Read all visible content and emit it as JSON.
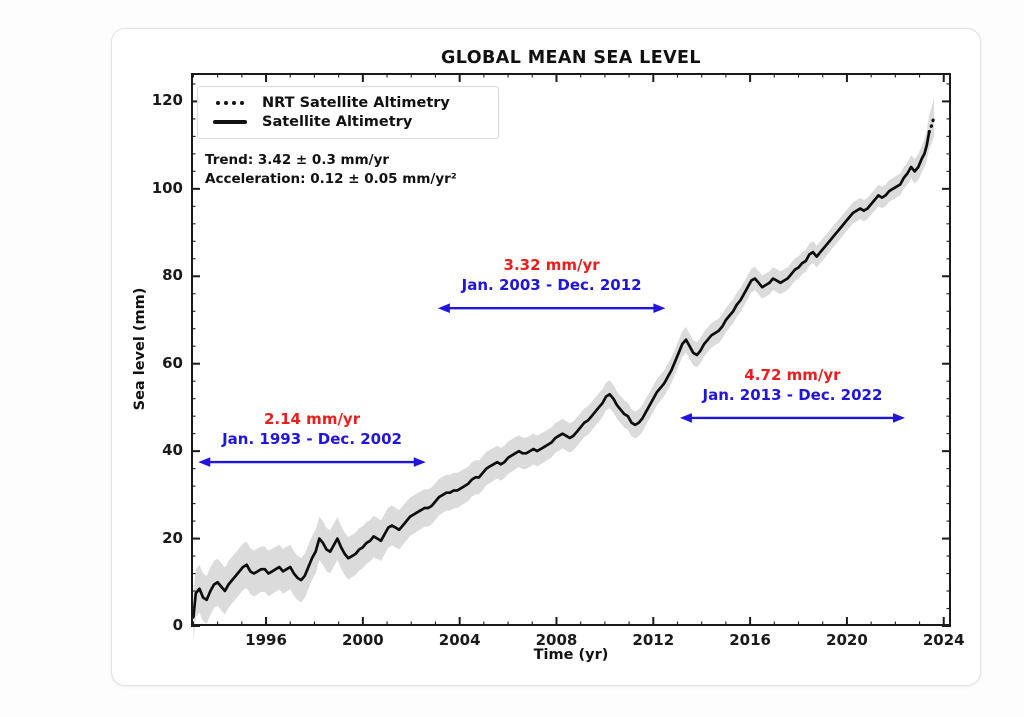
{
  "chart_data": {
    "type": "line",
    "title": "GLOBAL MEAN SEA LEVEL",
    "xlabel": "Time (yr)",
    "ylabel": "Sea level (mm)",
    "x_range": [
      1992.9,
      2024.3
    ],
    "y_range": [
      0,
      126.5
    ],
    "x_major_ticks": [
      1996,
      2000,
      2004,
      2008,
      2012,
      2016,
      2020,
      2024
    ],
    "x_minor_step": 1,
    "y_major_ticks": [
      0,
      20,
      40,
      60,
      80,
      100,
      120
    ],
    "y_minor_step": 4,
    "grid": "off",
    "legend_position": "upper-left",
    "legend": [
      {
        "label": "NRT Satellite Altimetry",
        "style": "dotted"
      },
      {
        "label": "Satellite Altimetry",
        "style": "solid"
      }
    ],
    "stats": {
      "trend": "Trend: 3.42 ± 0.3 mm/yr",
      "acceleration": "Acceleration: 0.12 ± 0.05 mm/yr²"
    },
    "annotations": [
      {
        "rate": "2.14 mm/yr",
        "range": "Jan. 1993 - Dec. 2002",
        "span_years": [
          1993.2,
          2002.6
        ],
        "arrow_mm": 37.5
      },
      {
        "rate": "3.32 mm/yr",
        "range": "Jan. 2003 - Dec. 2012",
        "span_years": [
          2003.1,
          2012.5
        ],
        "arrow_mm": 72.7
      },
      {
        "rate": "4.72 mm/yr",
        "range": "Jan. 2013 - Dec. 2022",
        "span_years": [
          2013.1,
          2022.4
        ],
        "arrow_mm": 47.6
      }
    ],
    "colors": {
      "line": "#0d0d0d",
      "band": "#d2d2d2",
      "rate_text": "#ec1d1d",
      "range_text": "#2015dd",
      "axis": "#1a1a1a"
    },
    "series": {
      "satellite_altimetry": [
        [
          1993.0,
          2
        ],
        [
          1993.1,
          7.5
        ],
        [
          1993.25,
          8.5
        ],
        [
          1993.4,
          6.5
        ],
        [
          1993.55,
          6
        ],
        [
          1993.7,
          8
        ],
        [
          1993.85,
          9.5
        ],
        [
          1994.0,
          10
        ],
        [
          1994.15,
          9
        ],
        [
          1994.3,
          8
        ],
        [
          1994.45,
          9.5
        ],
        [
          1994.6,
          10.5
        ],
        [
          1994.75,
          11.5
        ],
        [
          1994.9,
          12.5
        ],
        [
          1995.05,
          13.5
        ],
        [
          1995.2,
          14
        ],
        [
          1995.35,
          12.5
        ],
        [
          1995.5,
          12
        ],
        [
          1995.65,
          12.5
        ],
        [
          1995.8,
          13
        ],
        [
          1995.95,
          13
        ],
        [
          1996.1,
          12
        ],
        [
          1996.25,
          12.5
        ],
        [
          1996.4,
          13
        ],
        [
          1996.55,
          13.5
        ],
        [
          1996.7,
          12.5
        ],
        [
          1996.85,
          13
        ],
        [
          1997.0,
          13.5
        ],
        [
          1997.15,
          12
        ],
        [
          1997.3,
          11
        ],
        [
          1997.45,
          10.5
        ],
        [
          1997.6,
          11.5
        ],
        [
          1997.75,
          13.5
        ],
        [
          1997.9,
          15.5
        ],
        [
          1998.05,
          17
        ],
        [
          1998.2,
          20
        ],
        [
          1998.35,
          19
        ],
        [
          1998.5,
          17.5
        ],
        [
          1998.65,
          17
        ],
        [
          1998.8,
          18.5
        ],
        [
          1998.95,
          20
        ],
        [
          1999.1,
          18
        ],
        [
          1999.25,
          16.5
        ],
        [
          1999.4,
          15.5
        ],
        [
          1999.55,
          16
        ],
        [
          1999.7,
          16.5
        ],
        [
          1999.85,
          17.5
        ],
        [
          2000.0,
          18
        ],
        [
          2000.15,
          19
        ],
        [
          2000.3,
          19.5
        ],
        [
          2000.45,
          20.5
        ],
        [
          2000.6,
          20
        ],
        [
          2000.75,
          19.5
        ],
        [
          2000.9,
          21
        ],
        [
          2001.05,
          22.5
        ],
        [
          2001.2,
          23
        ],
        [
          2001.35,
          22.5
        ],
        [
          2001.5,
          22
        ],
        [
          2001.65,
          23
        ],
        [
          2001.8,
          24
        ],
        [
          2001.95,
          25
        ],
        [
          2002.1,
          25.5
        ],
        [
          2002.25,
          26
        ],
        [
          2002.4,
          26.5
        ],
        [
          2002.55,
          27
        ],
        [
          2002.7,
          27
        ],
        [
          2002.85,
          27.5
        ],
        [
          2003.0,
          28.5
        ],
        [
          2003.15,
          29.5
        ],
        [
          2003.3,
          30
        ],
        [
          2003.45,
          30.5
        ],
        [
          2003.6,
          30.5
        ],
        [
          2003.75,
          31
        ],
        [
          2003.9,
          31
        ],
        [
          2004.05,
          31.5
        ],
        [
          2004.2,
          32
        ],
        [
          2004.35,
          32.5
        ],
        [
          2004.5,
          33.5
        ],
        [
          2004.65,
          34
        ],
        [
          2004.8,
          34
        ],
        [
          2004.95,
          35
        ],
        [
          2005.1,
          36
        ],
        [
          2005.25,
          36.5
        ],
        [
          2005.4,
          37
        ],
        [
          2005.55,
          37.5
        ],
        [
          2005.7,
          37
        ],
        [
          2005.85,
          37.5
        ],
        [
          2006.0,
          38.5
        ],
        [
          2006.15,
          39
        ],
        [
          2006.3,
          39.5
        ],
        [
          2006.45,
          40
        ],
        [
          2006.6,
          39.5
        ],
        [
          2006.75,
          39.5
        ],
        [
          2006.9,
          40
        ],
        [
          2007.05,
          40.5
        ],
        [
          2007.2,
          40
        ],
        [
          2007.35,
          40.5
        ],
        [
          2007.5,
          41
        ],
        [
          2007.65,
          41.5
        ],
        [
          2007.8,
          42
        ],
        [
          2007.95,
          43
        ],
        [
          2008.1,
          43.5
        ],
        [
          2008.25,
          44
        ],
        [
          2008.4,
          43.5
        ],
        [
          2008.55,
          43
        ],
        [
          2008.7,
          43.5
        ],
        [
          2008.85,
          44.5
        ],
        [
          2009.0,
          45.5
        ],
        [
          2009.15,
          46.5
        ],
        [
          2009.3,
          47
        ],
        [
          2009.45,
          48
        ],
        [
          2009.6,
          49
        ],
        [
          2009.75,
          50
        ],
        [
          2009.9,
          51
        ],
        [
          2010.05,
          52.5
        ],
        [
          2010.2,
          53
        ],
        [
          2010.35,
          52
        ],
        [
          2010.5,
          50.5
        ],
        [
          2010.65,
          49.5
        ],
        [
          2010.8,
          48.5
        ],
        [
          2010.95,
          48
        ],
        [
          2011.1,
          46.5
        ],
        [
          2011.25,
          46
        ],
        [
          2011.4,
          46.5
        ],
        [
          2011.55,
          47.5
        ],
        [
          2011.7,
          49
        ],
        [
          2011.85,
          50.5
        ],
        [
          2012.0,
          52
        ],
        [
          2012.15,
          53.5
        ],
        [
          2012.3,
          54.5
        ],
        [
          2012.45,
          55.5
        ],
        [
          2012.6,
          57
        ],
        [
          2012.75,
          58.5
        ],
        [
          2012.9,
          60.5
        ],
        [
          2013.05,
          62.5
        ],
        [
          2013.2,
          64.5
        ],
        [
          2013.35,
          65.5
        ],
        [
          2013.5,
          64
        ],
        [
          2013.65,
          62.5
        ],
        [
          2013.8,
          62
        ],
        [
          2013.95,
          63
        ],
        [
          2014.1,
          64.5
        ],
        [
          2014.25,
          65.5
        ],
        [
          2014.4,
          66.5
        ],
        [
          2014.55,
          67
        ],
        [
          2014.7,
          67.5
        ],
        [
          2014.85,
          68.5
        ],
        [
          2015.0,
          70
        ],
        [
          2015.15,
          71
        ],
        [
          2015.3,
          72
        ],
        [
          2015.45,
          73.5
        ],
        [
          2015.6,
          74.5
        ],
        [
          2015.75,
          76
        ],
        [
          2015.9,
          77.5
        ],
        [
          2016.05,
          79
        ],
        [
          2016.2,
          79.5
        ],
        [
          2016.35,
          78.5
        ],
        [
          2016.5,
          77.5
        ],
        [
          2016.65,
          78
        ],
        [
          2016.8,
          78.5
        ],
        [
          2016.95,
          79.5
        ],
        [
          2017.1,
          79
        ],
        [
          2017.25,
          78.5
        ],
        [
          2017.4,
          79
        ],
        [
          2017.55,
          79.5
        ],
        [
          2017.7,
          80.5
        ],
        [
          2017.85,
          81.5
        ],
        [
          2018.0,
          82
        ],
        [
          2018.15,
          83
        ],
        [
          2018.3,
          83.5
        ],
        [
          2018.45,
          85
        ],
        [
          2018.6,
          85.5
        ],
        [
          2018.75,
          84.5
        ],
        [
          2018.9,
          85.5
        ],
        [
          2019.05,
          86.5
        ],
        [
          2019.2,
          87.5
        ],
        [
          2019.35,
          88.5
        ],
        [
          2019.5,
          89.5
        ],
        [
          2019.65,
          90.5
        ],
        [
          2019.8,
          91.5
        ],
        [
          2019.95,
          92.5
        ],
        [
          2020.1,
          93.5
        ],
        [
          2020.25,
          94.5
        ],
        [
          2020.4,
          95
        ],
        [
          2020.55,
          95.5
        ],
        [
          2020.7,
          95
        ],
        [
          2020.85,
          95.5
        ],
        [
          2021.0,
          96.5
        ],
        [
          2021.15,
          97.5
        ],
        [
          2021.3,
          98.5
        ],
        [
          2021.45,
          98
        ],
        [
          2021.6,
          98.5
        ],
        [
          2021.75,
          99.5
        ],
        [
          2021.9,
          100
        ],
        [
          2022.05,
          100.5
        ],
        [
          2022.2,
          101
        ],
        [
          2022.35,
          102.5
        ],
        [
          2022.5,
          103.5
        ],
        [
          2022.65,
          105
        ],
        [
          2022.8,
          104
        ],
        [
          2022.95,
          105
        ],
        [
          2023.1,
          107
        ],
        [
          2023.2,
          108
        ],
        [
          2023.3,
          110
        ],
        [
          2023.4,
          113
        ]
      ],
      "nrt_satellite_altimetry": [
        [
          2023.4,
          113
        ],
        [
          2023.5,
          114.5
        ],
        [
          2023.6,
          116.5
        ]
      ]
    },
    "uncertainty_halfwidth_mm": [
      [
        1993,
        5.5
      ],
      [
        1996,
        5.2
      ],
      [
        2000,
        4.8
      ],
      [
        2004,
        4.0
      ],
      [
        2008,
        3.4
      ],
      [
        2012,
        3.0
      ],
      [
        2016,
        2.7
      ],
      [
        2020,
        2.4
      ],
      [
        2022.5,
        2.5
      ],
      [
        2023.2,
        3.2
      ],
      [
        2023.6,
        4.5
      ]
    ]
  }
}
